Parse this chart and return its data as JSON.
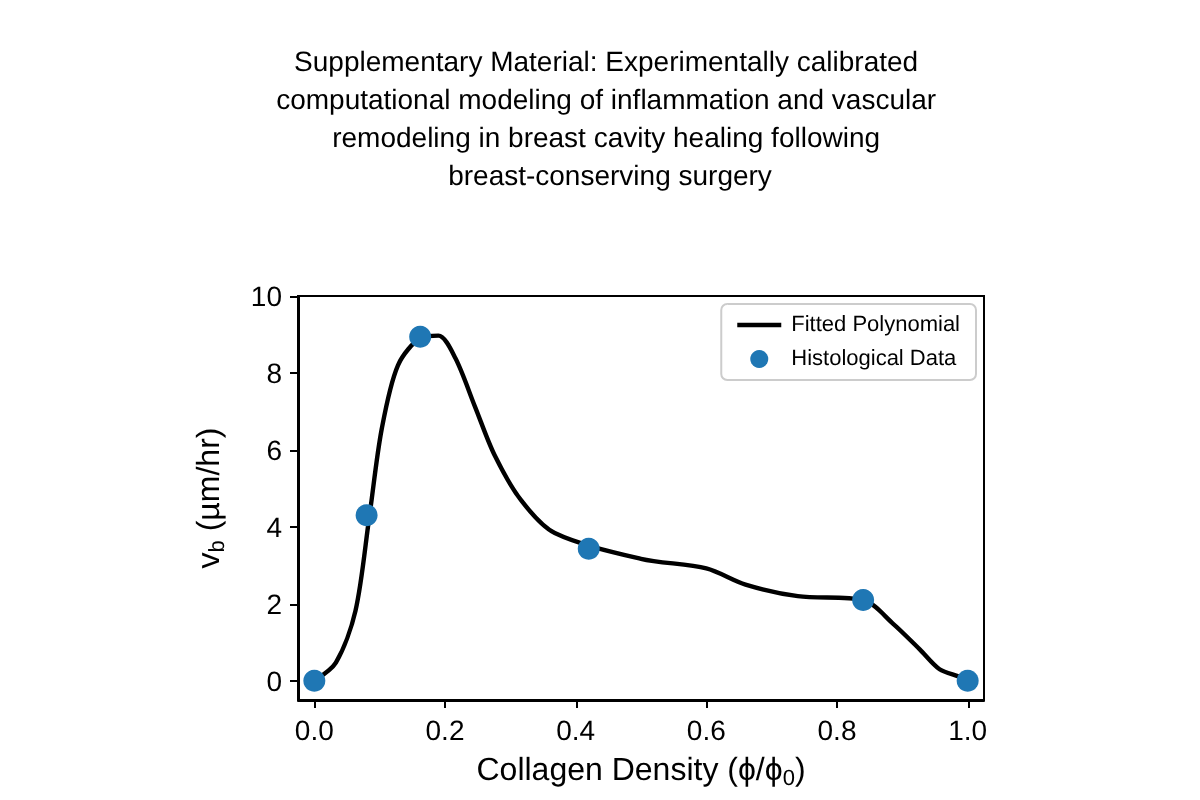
{
  "chart_data": {
    "type": "line",
    "title": "Supplementary Material: Experimentally calibrated computational modeling of inflammation and vascular remodeling in breast cavity healing following breast-conserving surgery",
    "xlabel": "Collagen Density (ϕ/ϕ$_{0}$)",
    "ylabel": "v$_{b}$ (µm/hr)",
    "xlim": [
      -0.025,
      1.025
    ],
    "ylim": [
      -0.5,
      10
    ],
    "xticks": [
      {
        "value": 0,
        "label": "0.0"
      },
      {
        "value": 0.2,
        "label": "0.2"
      },
      {
        "value": 0.4,
        "label": "0.4"
      },
      {
        "value": 0.6,
        "label": "0.6"
      },
      {
        "value": 0.8,
        "label": "0.8"
      },
      {
        "value": 1,
        "label": "1.0"
      }
    ],
    "yticks": [
      0,
      2,
      4,
      6,
      8,
      10
    ],
    "grid": false,
    "legend": "top right",
    "series": [
      {
        "name": "Fitted Polynomial",
        "color": "#000000",
        "marker": "none",
        "x": [
          0,
          0.033,
          0.063,
          0.084,
          0.103,
          0.128,
          0.164,
          0.19,
          0.216,
          0.246,
          0.276,
          0.317,
          0.368,
          0.5,
          0.6,
          0.66,
          0.74,
          0.84,
          0.886,
          0.927,
          0.957,
          0.988,
          1
        ],
        "values": [
          0,
          0.47,
          1.82,
          4.24,
          6.53,
          8.2,
          8.92,
          8.97,
          8.38,
          7.12,
          5.86,
          4.68,
          3.84,
          3.17,
          2.92,
          2.5,
          2.2,
          2.1,
          1.48,
          0.81,
          0.3,
          0.1,
          0
        ]
      },
      {
        "name": "Histological Data",
        "type": "scatter",
        "color": "#1f77b4",
        "marker": "circle",
        "x": [
          0,
          0.08,
          0.162,
          0.42,
          0.84,
          1
        ],
        "values": [
          0,
          4.3,
          8.94,
          3.43,
          2.1,
          0
        ]
      }
    ]
  }
}
